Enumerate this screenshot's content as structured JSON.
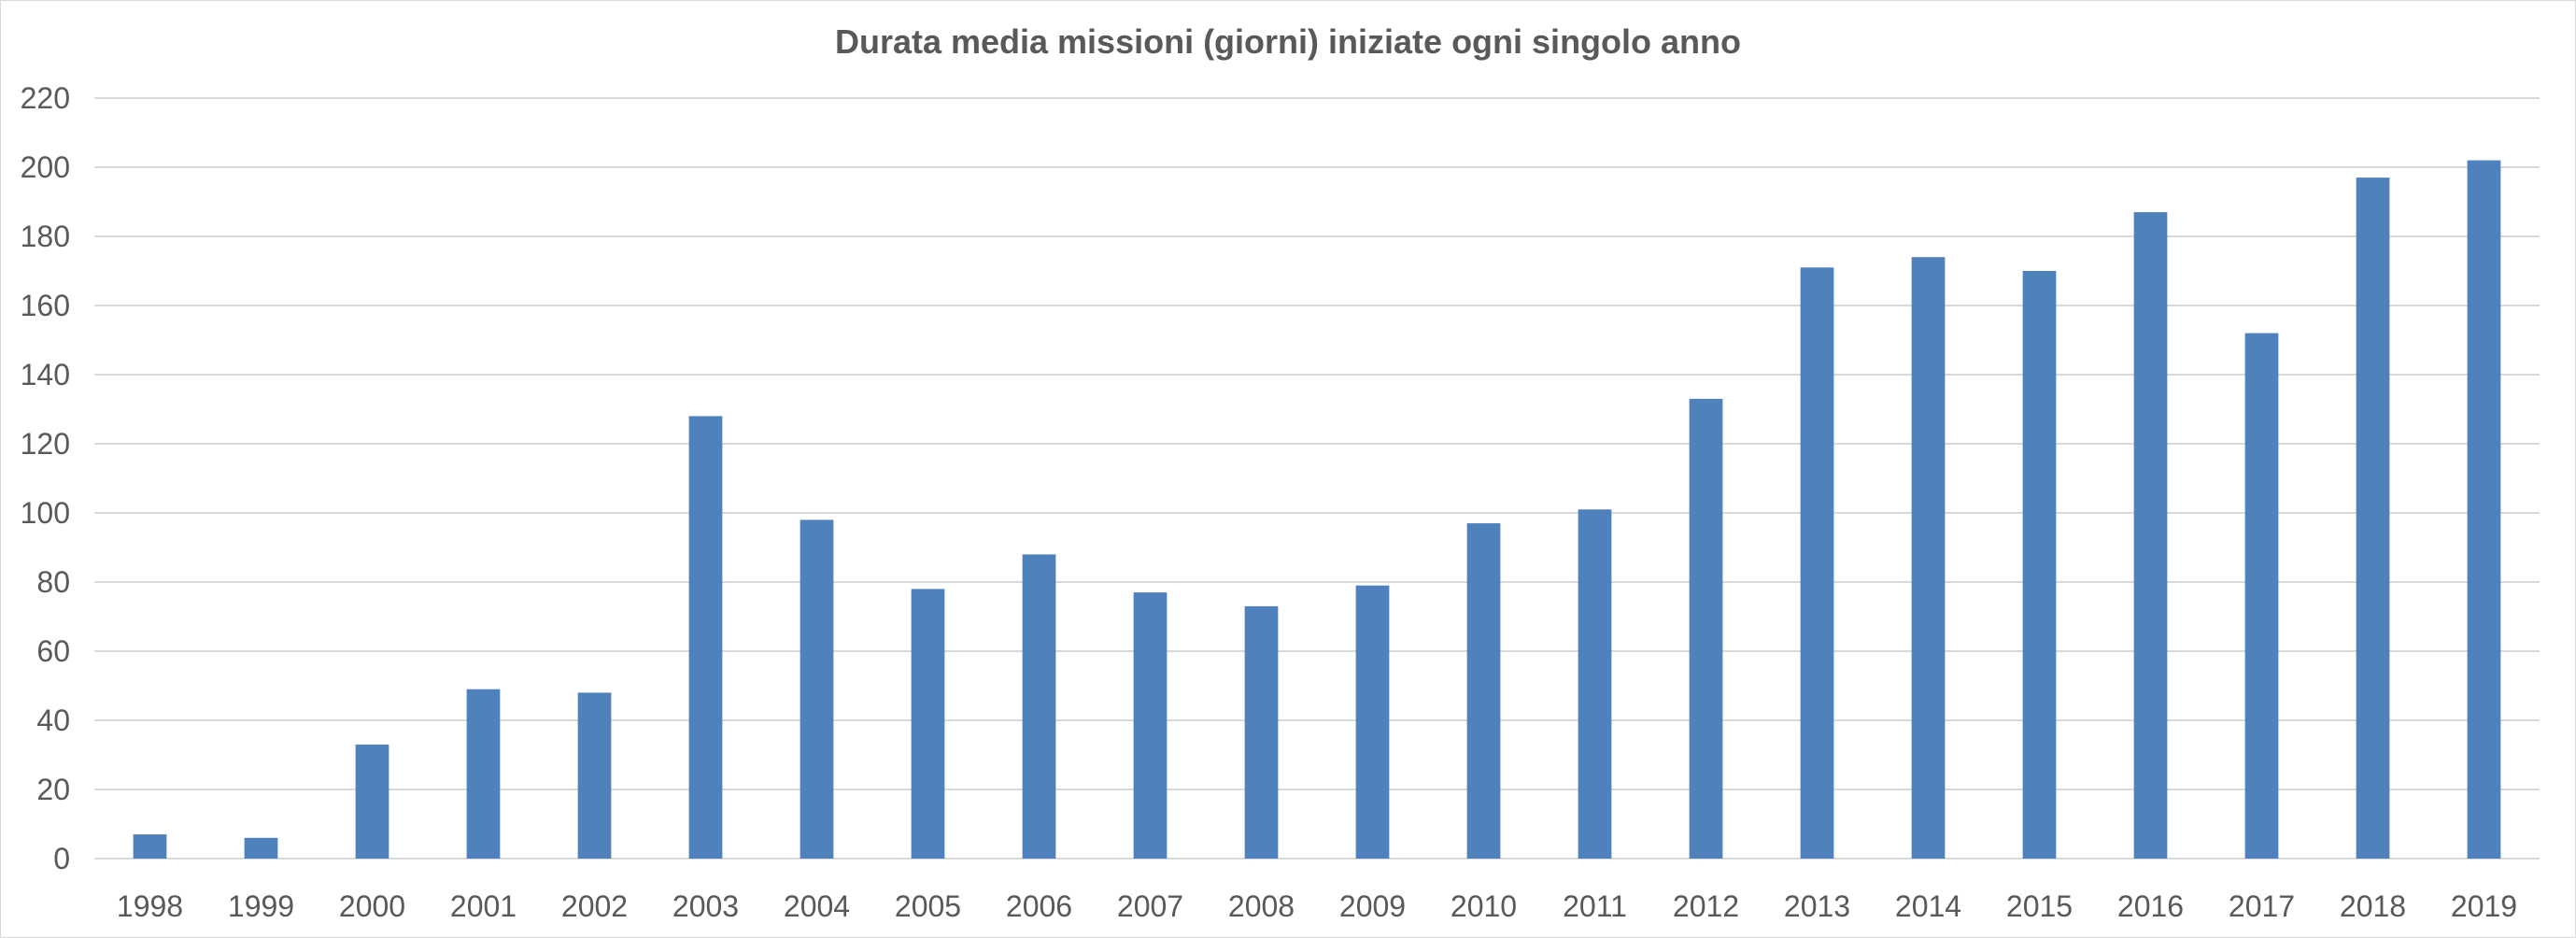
{
  "chart_data": {
    "type": "bar",
    "title": "Durata media missioni (giorni) iniziate ogni singolo anno",
    "xlabel": "",
    "ylabel": "",
    "categories": [
      "1998",
      "1999",
      "2000",
      "2001",
      "2002",
      "2003",
      "2004",
      "2005",
      "2006",
      "2007",
      "2008",
      "2009",
      "2010",
      "2011",
      "2012",
      "2013",
      "2014",
      "2015",
      "2016",
      "2017",
      "2018",
      "2019"
    ],
    "values": [
      7,
      6,
      33,
      49,
      48,
      128,
      98,
      78,
      88,
      77,
      73,
      79,
      97,
      101,
      133,
      171,
      174,
      170,
      187,
      152,
      197,
      202
    ],
    "ylim": [
      0,
      220
    ],
    "yticks": [
      "0",
      "20",
      "40",
      "60",
      "80",
      "100",
      "120",
      "140",
      "160",
      "180",
      "200",
      "220"
    ],
    "grid": true,
    "legend": "none",
    "bar_color": "#4f81bd"
  }
}
